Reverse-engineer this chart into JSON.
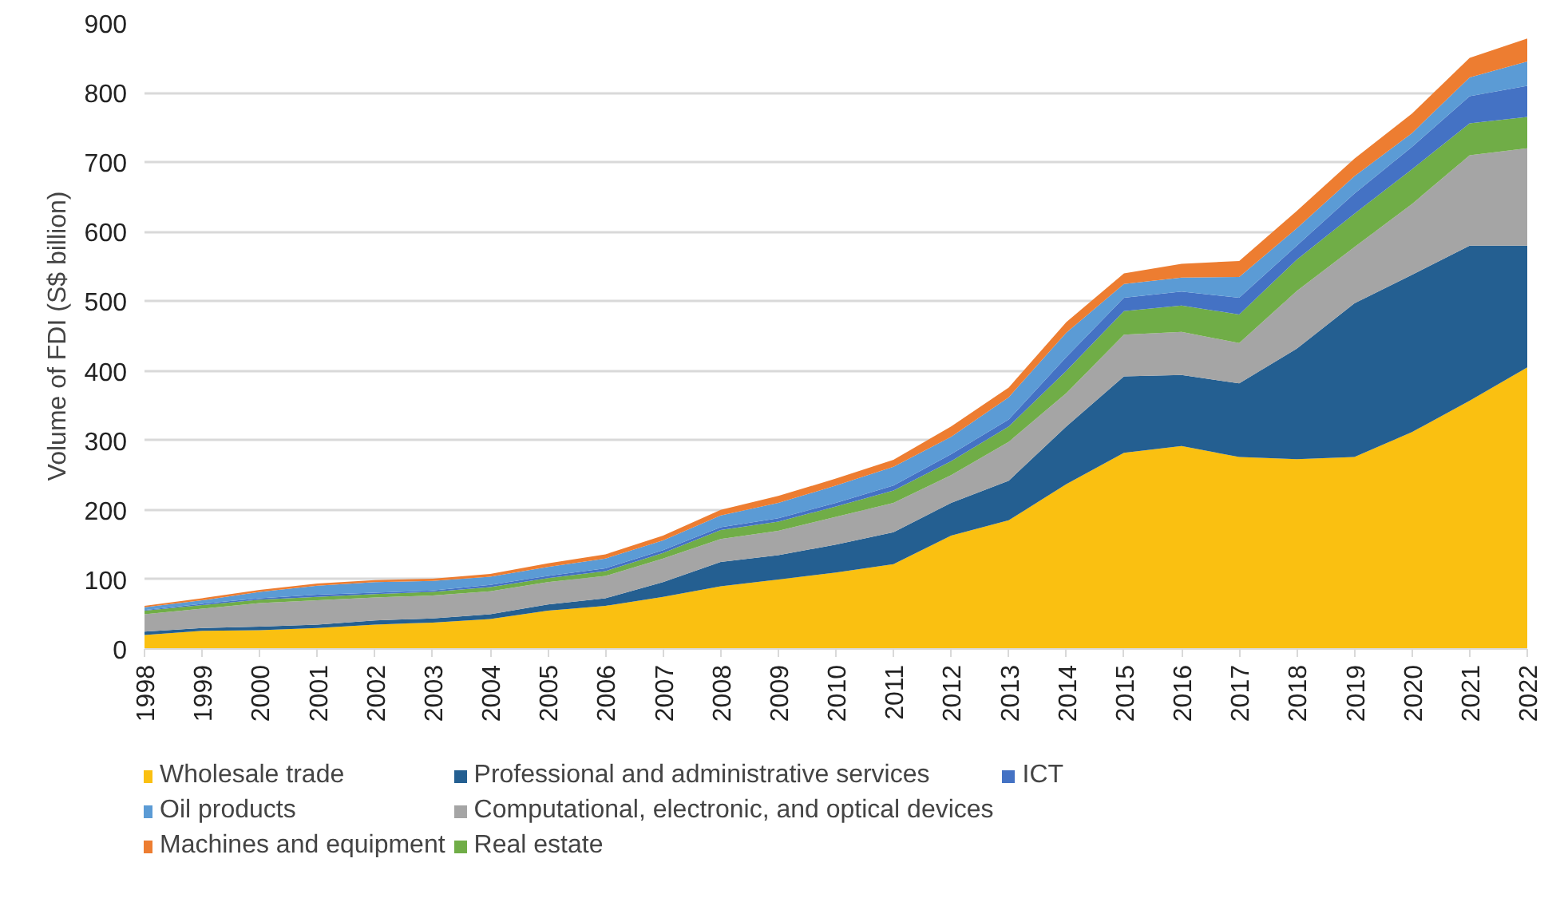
{
  "chart_data": {
    "type": "area",
    "stacked": true,
    "ylabel": "Volume of FDI (S$ billion)",
    "categories": [
      "1998",
      "1999",
      "2000",
      "2001",
      "2002",
      "2003",
      "2004",
      "2005",
      "2006",
      "2007",
      "2008",
      "2009",
      "2010",
      "2011",
      "2012",
      "2013",
      "2014",
      "2015",
      "2016",
      "2017",
      "2018",
      "2019",
      "2020",
      "2021",
      "2022"
    ],
    "ylim": [
      0,
      900
    ],
    "yticks": [
      0,
      100,
      200,
      300,
      400,
      500,
      600,
      700,
      800,
      900
    ],
    "grid": "y",
    "legend": "bottom",
    "series": [
      {
        "name": "Wholesale trade",
        "color": "#fac011",
        "values": [
          20,
          26,
          27,
          30,
          35,
          38,
          43,
          55,
          62,
          75,
          90,
          100,
          110,
          122,
          163,
          185,
          237,
          282,
          292,
          276,
          273,
          276,
          312,
          357,
          405
        ]
      },
      {
        "name": "Professional and administrative services",
        "color": "#245f91",
        "values": [
          5,
          4,
          5,
          5,
          6,
          6,
          7,
          9,
          11,
          21,
          35,
          35,
          40,
          46,
          47,
          57,
          83,
          110,
          102,
          106,
          159,
          221,
          226,
          223,
          175
        ]
      },
      {
        "name": "Computational, electronic, and optical devices",
        "color": "#a5a5a5",
        "values": [
          25,
          28,
          34,
          35,
          33,
          33,
          33,
          32,
          32,
          34,
          33,
          35,
          40,
          42,
          40,
          56,
          48,
          60,
          62,
          58,
          83,
          81,
          102,
          130,
          140
        ]
      },
      {
        "name": "Real estate",
        "color": "#70ad47",
        "values": [
          5,
          5,
          5,
          5,
          5,
          5,
          6,
          6,
          7,
          8,
          13,
          13,
          15,
          18,
          20,
          22,
          32,
          34,
          38,
          41,
          45,
          48,
          50,
          46,
          45
        ]
      },
      {
        "name": "ICT",
        "color": "#4472c4",
        "values": [
          1,
          2,
          2,
          3,
          2,
          2,
          3,
          3,
          4,
          4,
          4,
          5,
          5,
          7,
          10,
          10,
          20,
          19,
          20,
          24,
          20,
          29,
          32,
          39,
          45
        ]
      },
      {
        "name": "Oil products",
        "color": "#5b9bd5",
        "values": [
          4,
          5,
          9,
          13,
          15,
          14,
          12,
          13,
          14,
          14,
          17,
          22,
          25,
          27,
          25,
          32,
          35,
          20,
          20,
          30,
          25,
          25,
          20,
          27,
          35
        ]
      },
      {
        "name": "Machines and equipment",
        "color": "#ed7d31",
        "values": [
          2,
          3,
          3,
          3,
          3,
          3,
          4,
          5,
          6,
          7,
          8,
          10,
          10,
          10,
          15,
          14,
          15,
          15,
          20,
          23,
          25,
          25,
          28,
          28,
          33
        ]
      }
    ]
  }
}
